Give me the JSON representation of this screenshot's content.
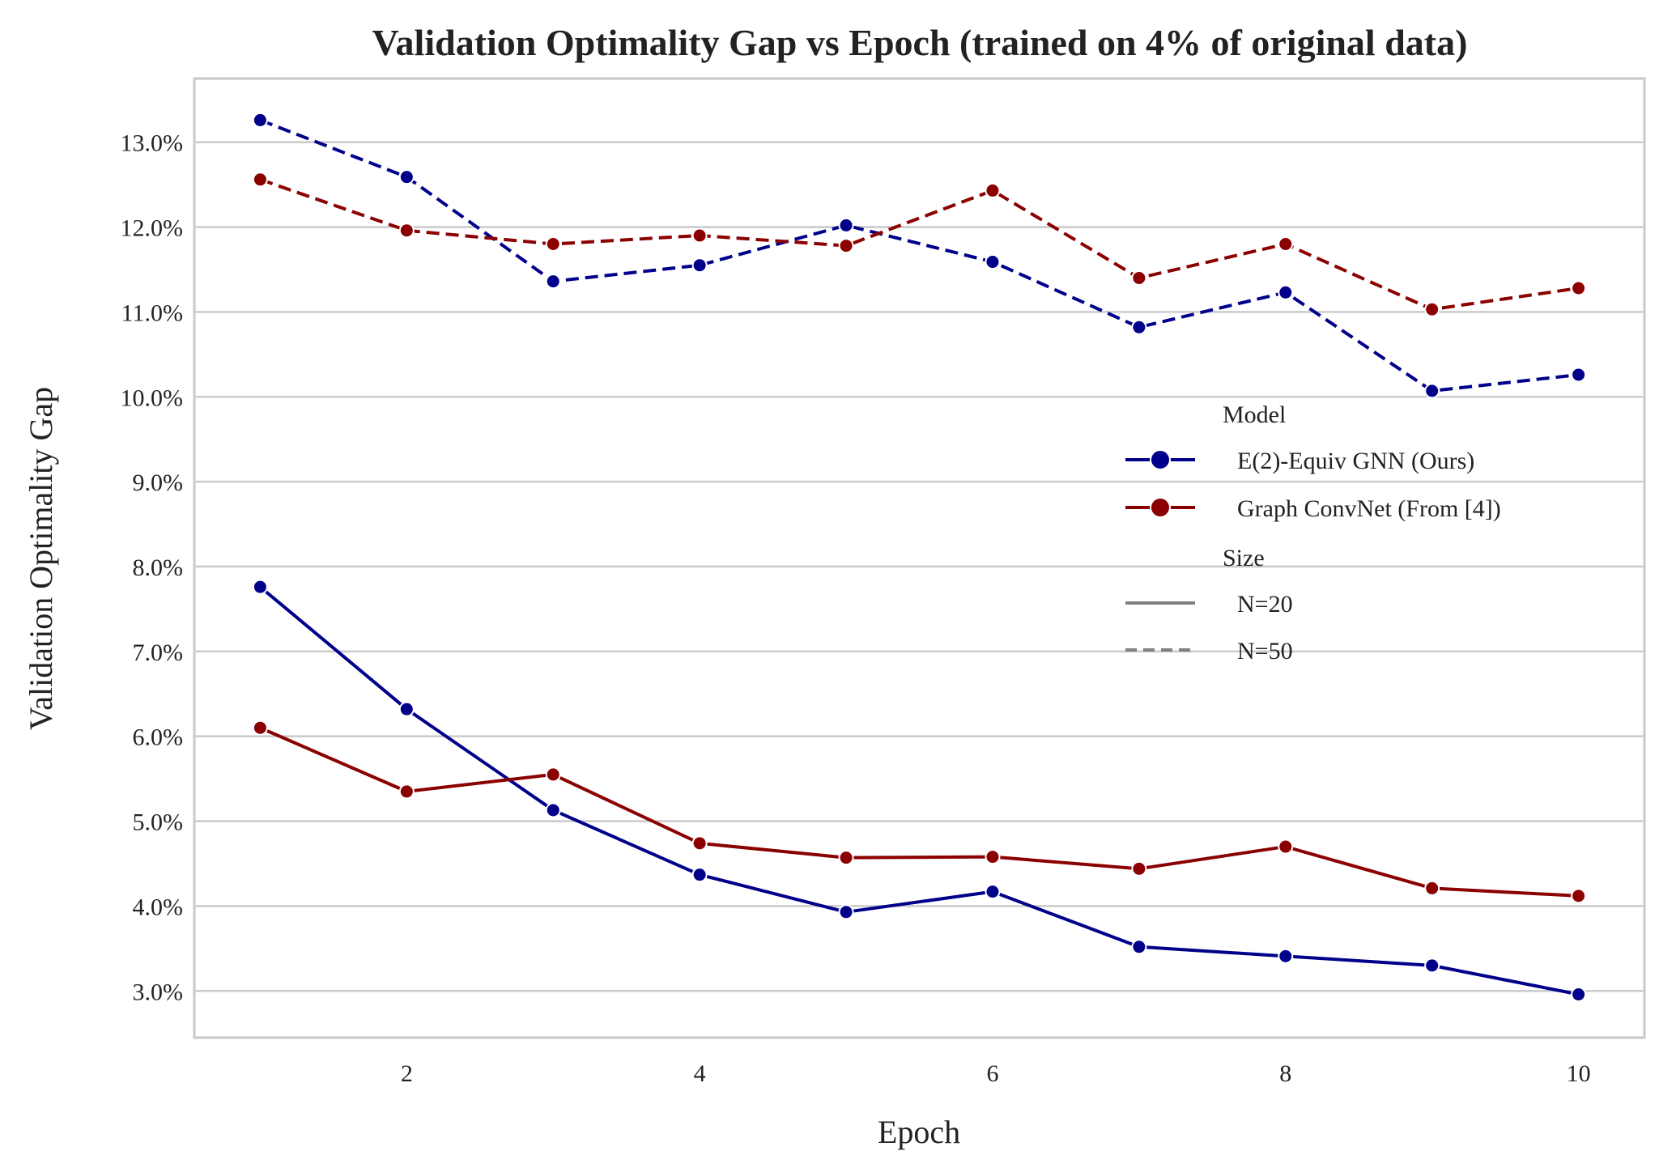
{
  "chart_data": {
    "type": "line",
    "title": "Validation Optimality Gap vs Epoch  (trained on 4% of original data)",
    "xlabel": "Epoch",
    "ylabel": "Validation Optimality Gap",
    "x": [
      1,
      2,
      3,
      4,
      5,
      6,
      7,
      8,
      9,
      10
    ],
    "xticks": [
      2,
      4,
      6,
      8,
      10
    ],
    "xtick_labels": [
      "2",
      "4",
      "6",
      "8",
      "10"
    ],
    "xlim": [
      0.55,
      10.45
    ],
    "yticks": [
      3,
      4,
      5,
      6,
      7,
      8,
      9,
      10,
      11,
      12,
      13
    ],
    "ytick_labels": [
      "3.0%",
      "4.0%",
      "5.0%",
      "6.0%",
      "7.0%",
      "8.0%",
      "9.0%",
      "10.0%",
      "11.0%",
      "12.0%",
      "13.0%"
    ],
    "ylim": [
      2.45,
      13.75
    ],
    "grid": true,
    "legend_position": "right",
    "legend": {
      "model_title": "Model",
      "models": [
        {
          "label": "E(2)-Equiv GNN (Ours)",
          "color": "#00008b"
        },
        {
          "label": "Graph ConvNet (From [4])",
          "color": "#8b0000"
        }
      ],
      "size_title": "Size",
      "sizes": [
        {
          "label": "N=20",
          "dash": "solid"
        },
        {
          "label": "N=50",
          "dash": "dashed"
        }
      ]
    },
    "series": [
      {
        "model": "E(2)-Equiv GNN (Ours)",
        "size": "N=20",
        "color": "#00008b",
        "dash": "solid",
        "values": [
          7.76,
          6.32,
          5.13,
          4.37,
          3.93,
          4.17,
          3.52,
          3.41,
          3.3,
          2.96
        ]
      },
      {
        "model": "E(2)-Equiv GNN (Ours)",
        "size": "N=50",
        "color": "#00008b",
        "dash": "dashed",
        "values": [
          13.26,
          12.59,
          11.36,
          11.55,
          12.02,
          11.59,
          10.82,
          11.23,
          10.07,
          10.26
        ]
      },
      {
        "model": "Graph ConvNet (From [4])",
        "size": "N=20",
        "color": "#8b0000",
        "dash": "solid",
        "values": [
          6.1,
          5.35,
          5.55,
          4.74,
          4.57,
          4.58,
          4.44,
          4.7,
          4.21,
          4.12
        ]
      },
      {
        "model": "Graph ConvNet (From [4])",
        "size": "N=50",
        "color": "#8b0000",
        "dash": "dashed",
        "values": [
          12.56,
          11.96,
          11.8,
          11.9,
          11.78,
          12.43,
          11.4,
          11.8,
          11.03,
          11.28
        ]
      }
    ]
  }
}
